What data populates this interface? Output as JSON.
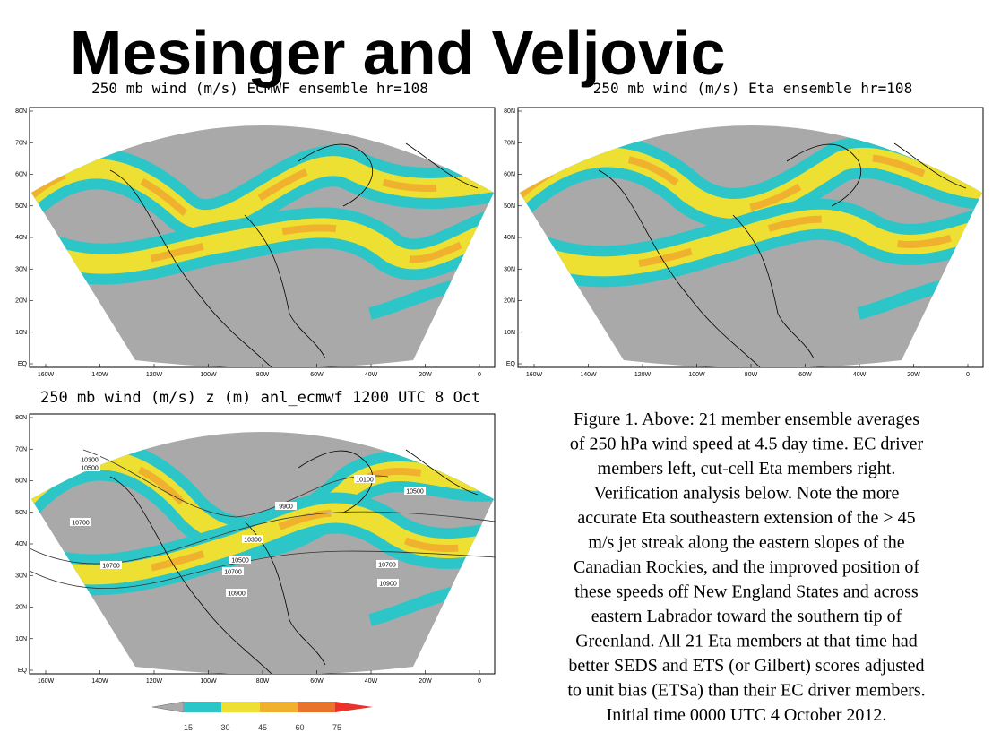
{
  "header": {
    "title": "Mesinger and Veljovic"
  },
  "panels": [
    {
      "title": "250 mb wind (m/s)  ECMWF ensemble  hr=108"
    },
    {
      "title": "250 mb wind (m/s)  Eta ensemble  hr=108"
    },
    {
      "title": "250 mb wind (m/s) z (m)  anl_ecmwf    1200 UTC 8 Oct",
      "contour_labels": [
        "10300",
        "10500",
        "10100",
        "10500",
        "9900",
        "10700",
        "10300",
        "10500",
        "10700",
        "10700",
        "10700",
        "10900",
        "10900"
      ]
    }
  ],
  "lat_labels": [
    "80N",
    "70N",
    "60N",
    "50N",
    "40N",
    "30N",
    "20N",
    "10N",
    "EQ"
  ],
  "lon_labels": [
    "160W",
    "140W",
    "120W",
    "100W",
    "80W",
    "60W",
    "40W",
    "20W",
    "0"
  ],
  "colorbar": {
    "labels": [
      "15",
      "30",
      "45",
      "60",
      "75"
    ]
  },
  "caption": {
    "lines": [
      "Figure 1. Above: 21 member ensemble averages",
      "of 250 hPa wind speed at 4.5 day time. EC driver",
      "members left, cut-cell Eta members right.",
      "Verification analysis below. Note the more",
      "accurate Eta southeastern extension of the > 45",
      "m/s jet streak along the eastern slopes of the",
      "Canadian Rockies, and the improved position of",
      "these speeds off New England States and across",
      "eastern Labrador toward the southern tip of",
      "Greenland. All 21 Eta members at that time had",
      "better SEDS and ETS (or Gilbert) scores adjusted",
      "to unit bias (ETSa) than their EC driver members.",
      "Initial time 0000 UTC 4 October 2012."
    ]
  }
}
